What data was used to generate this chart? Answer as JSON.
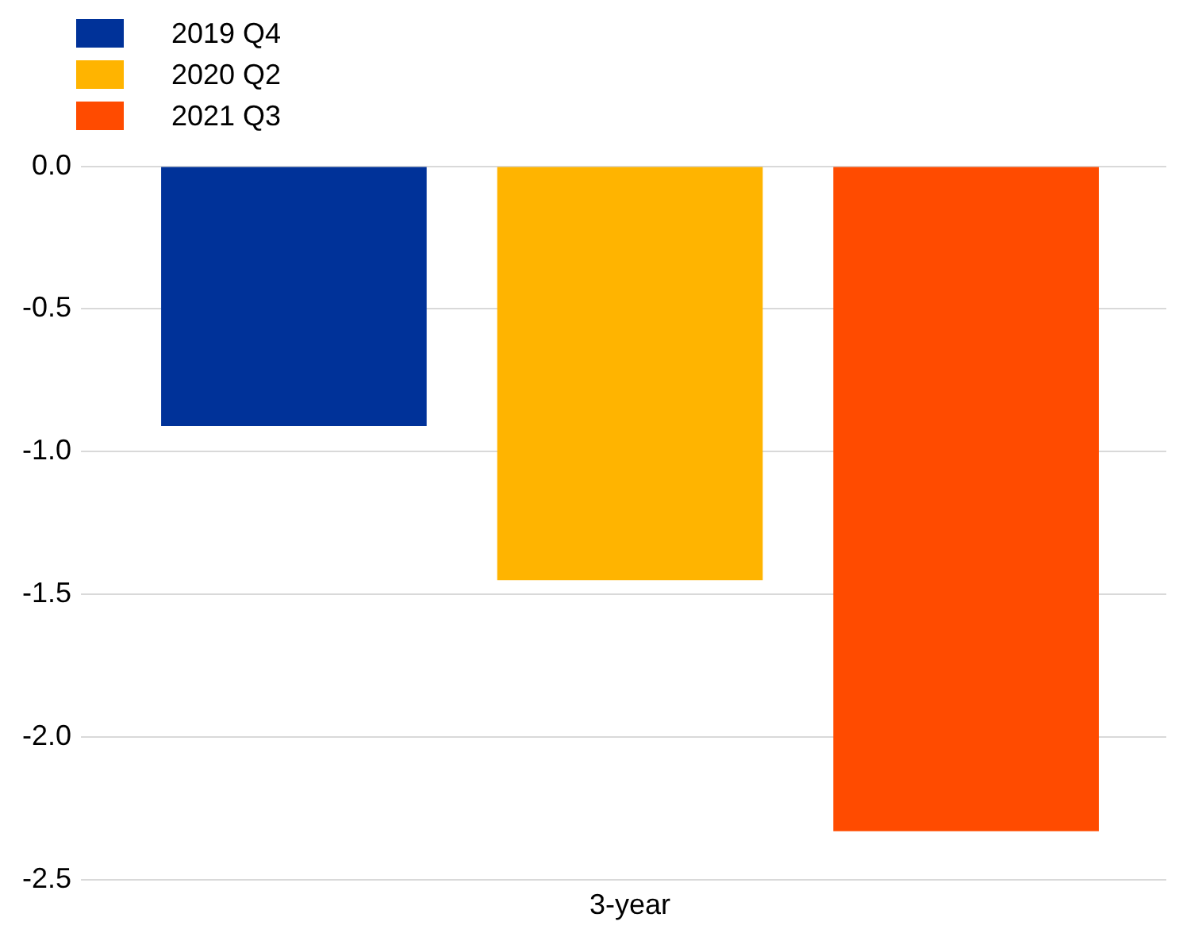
{
  "chart_data": {
    "type": "bar",
    "categories": [
      "3-year"
    ],
    "series": [
      {
        "name": "2019 Q4",
        "color": "#003299",
        "values": [
          -0.91
        ]
      },
      {
        "name": "2020 Q2",
        "color": "#ffb400",
        "values": [
          -1.45
        ]
      },
      {
        "name": "2021 Q3",
        "color": "#ff4b00",
        "values": [
          -2.33
        ]
      }
    ],
    "ylim": [
      -2.5,
      0
    ],
    "yticks": [
      {
        "value": -2.5,
        "label": "-2.5"
      },
      {
        "value": -2,
        "label": "-2.0"
      },
      {
        "value": -1.5,
        "label": "-1.5"
      },
      {
        "value": -1,
        "label": "-1.0"
      },
      {
        "value": -0.5,
        "label": "-0.5"
      },
      {
        "value": 0,
        "label": "0.0"
      }
    ],
    "grid": "y",
    "legend": "top left"
  }
}
